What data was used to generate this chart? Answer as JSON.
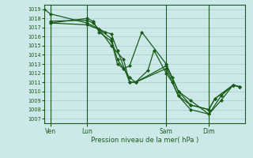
{
  "title": "",
  "xlabel": "Pression niveau de la mer( hPa )",
  "background_color": "#cce8e8",
  "grid_color": "#aacccc",
  "line_color": "#1a5c1a",
  "ylim": [
    1006.5,
    1019.5
  ],
  "yticks": [
    1007,
    1008,
    1009,
    1010,
    1011,
    1012,
    1013,
    1014,
    1015,
    1016,
    1017,
    1018,
    1019
  ],
  "xtick_labels": [
    "Ven",
    "Lun",
    "Sam",
    "Dim"
  ],
  "xtick_positions": [
    0.5,
    3.5,
    10.0,
    13.5
  ],
  "xvlines": [
    0.5,
    3.5,
    10.0,
    13.5
  ],
  "xlim": [
    0.0,
    16.5
  ],
  "lines": [
    [
      0.0,
      1019.0,
      0.5,
      1018.5,
      3.5,
      1017.5,
      5.0,
      1016.5,
      5.5,
      1016.3,
      6.0,
      1014.5,
      7.0,
      1011.0,
      7.5,
      1011.0,
      10.0,
      1012.8,
      11.0,
      1010.0,
      12.0,
      1009.0,
      13.5,
      1007.5,
      14.5,
      1009.5,
      15.5,
      1010.7,
      16.0,
      1010.5
    ],
    [
      0.5,
      1017.5,
      3.5,
      1017.3,
      4.5,
      1016.8,
      5.5,
      1015.0,
      6.5,
      1013.5,
      7.0,
      1011.0,
      7.5,
      1011.0,
      10.0,
      1012.5,
      11.0,
      1009.5,
      12.0,
      1008.0,
      13.5,
      1007.5,
      14.5,
      1009.0,
      15.5,
      1010.7,
      16.0,
      1010.5
    ],
    [
      0.5,
      1017.5,
      3.5,
      1018.0,
      4.0,
      1017.7,
      4.5,
      1016.5,
      5.5,
      1015.5,
      6.0,
      1013.0,
      6.5,
      1012.5,
      7.0,
      1012.8,
      8.0,
      1016.5,
      10.0,
      1013.0,
      10.5,
      1011.5,
      11.0,
      1010.0,
      12.0,
      1008.5,
      13.5,
      1008.0,
      14.0,
      1009.2,
      15.5,
      1010.7,
      16.0,
      1010.5
    ],
    [
      0.5,
      1017.7,
      3.5,
      1017.8,
      4.0,
      1017.5,
      4.5,
      1016.8,
      5.5,
      1015.8,
      6.0,
      1013.5,
      7.0,
      1011.5,
      7.5,
      1011.0,
      8.5,
      1012.3,
      9.0,
      1014.5,
      10.0,
      1012.0,
      10.5,
      1011.0,
      11.0,
      1009.5,
      12.0,
      1008.5,
      13.5,
      1008.0,
      14.0,
      1009.2,
      15.5,
      1010.7,
      16.0,
      1010.5
    ]
  ]
}
